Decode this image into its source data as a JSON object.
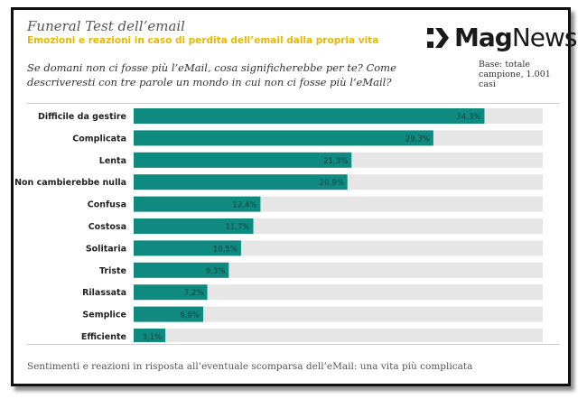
{
  "header": {
    "title": "Funeral Test dell’email",
    "subtitle": "Emozioni e reazioni in caso di perdita dell’email dalla propria vita",
    "logo_bold": "Mag",
    "logo_light": "News"
  },
  "question": "Se domani non ci fosse più l’eMail, cosa significherebbe per te? Come descriveresti con tre parole un mondo in cui non ci fosse più l’eMail?",
  "base_note": [
    "Base: totale",
    "campione, 1.001",
    "casi"
  ],
  "footer": "Sentimenti e reazioni in risposta all’eventuale scomparsa dell’eMail: una vita più complicata",
  "colors": {
    "bar": "#0f8a80",
    "bar_row_bg": "#e6e6e6",
    "subtitle": "#e6b800",
    "label_text": "#222222"
  },
  "chart_data": {
    "type": "bar",
    "orientation": "horizontal",
    "categories": [
      "Difficile da gestire",
      "Complicata",
      "Lenta",
      "Non cambierebbe nulla",
      "Confusa",
      "Costosa",
      "Solitaria",
      "Triste",
      "Rilassata",
      "Semplice",
      "Efficiente"
    ],
    "values": [
      34.3,
      29.3,
      21.3,
      20.9,
      12.4,
      11.7,
      10.5,
      9.3,
      7.2,
      6.8,
      3.1
    ],
    "value_labels": [
      "34,3%",
      "29,3%",
      "21,3%",
      "20,9%",
      "12,4%",
      "11,7%",
      "10,5%",
      "9,3%",
      "7,2%",
      "6,8%",
      "3,1%"
    ],
    "xlim": [
      0,
      40
    ],
    "grid": false,
    "legend": "none"
  }
}
